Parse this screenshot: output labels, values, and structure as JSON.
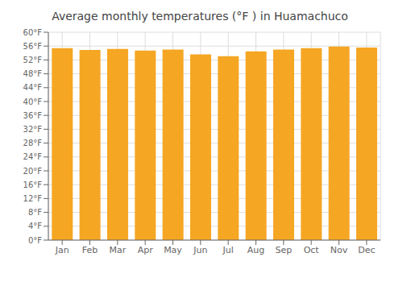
{
  "chart_data": {
    "type": "bar",
    "title": "Average monthly temperatures (°F ) in Huamachuco",
    "categories": [
      "Jan",
      "Feb",
      "Mar",
      "Apr",
      "May",
      "Jun",
      "Jul",
      "Aug",
      "Sep",
      "Oct",
      "Nov",
      "Dec"
    ],
    "values": [
      55.4,
      54.9,
      55.2,
      54.7,
      55.0,
      53.6,
      53.1,
      54.5,
      55.0,
      55.4,
      55.9,
      55.6
    ],
    "color": "#F5A623",
    "ylim": [
      0,
      60
    ],
    "yticks": [
      {
        "value": 0,
        "label": "0°F"
      },
      {
        "value": 4,
        "label": "4°F"
      },
      {
        "value": 8,
        "label": "8°F"
      },
      {
        "value": 12,
        "label": "12°F"
      },
      {
        "value": 16,
        "label": "16°F"
      },
      {
        "value": 20,
        "label": "20°F"
      },
      {
        "value": 24,
        "label": "24°F"
      },
      {
        "value": 28,
        "label": "28°F"
      },
      {
        "value": 32,
        "label": "32°F"
      },
      {
        "value": 36,
        "label": "36°F"
      },
      {
        "value": 40,
        "label": "40°F"
      },
      {
        "value": 44,
        "label": "44°F"
      },
      {
        "value": 48,
        "label": "48°F"
      },
      {
        "value": 52,
        "label": "52°F"
      },
      {
        "value": 56,
        "label": "56°F"
      },
      {
        "value": 60,
        "label": "60°F"
      }
    ],
    "grid": true
  }
}
